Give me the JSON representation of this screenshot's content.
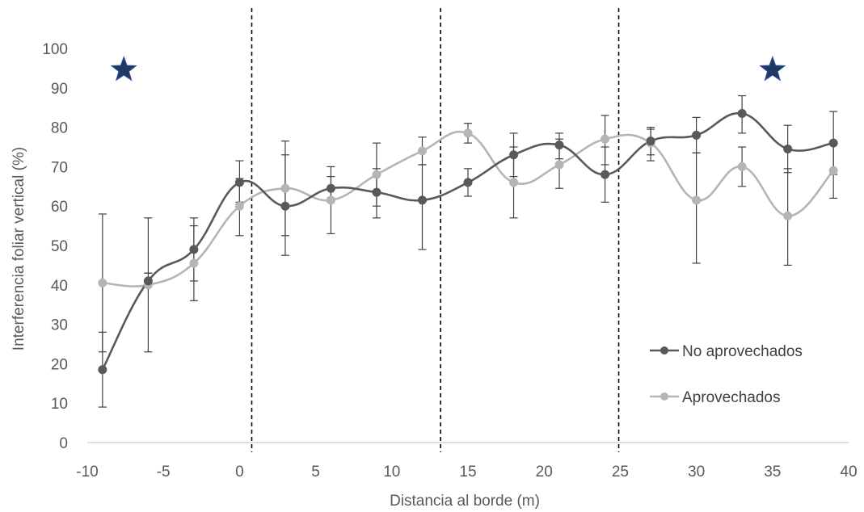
{
  "chart_data": {
    "type": "line",
    "title": "",
    "xlabel": "Distancia al borde (m)",
    "ylabel": "Interferencia foliar vertical (%)",
    "xlim": [
      -10,
      40
    ],
    "ylim": [
      0,
      100
    ],
    "xticks": [
      -10,
      -5,
      0,
      5,
      10,
      15,
      20,
      25,
      30,
      35,
      40
    ],
    "yticks": [
      0,
      10,
      20,
      30,
      40,
      50,
      60,
      70,
      80,
      90,
      100
    ],
    "grid": false,
    "legend_position": "right",
    "smooth": true,
    "vertical_dashed_lines_x": [
      0.8,
      13.2,
      24.9
    ],
    "stars": [
      {
        "x": -7.6,
        "y": 95,
        "color": "#1f3864"
      },
      {
        "x": 35.0,
        "y": 95,
        "color": "#1f3864"
      }
    ],
    "series": [
      {
        "name": "No aprovechados",
        "color": "#595959",
        "points": [
          {
            "x": -9,
            "y": 18.5,
            "err_low": 9,
            "err_high": 28
          },
          {
            "x": -6,
            "y": 41,
            "err_low": 43,
            "err_high": 57
          },
          {
            "x": -3,
            "y": 49,
            "err_low": 41,
            "err_high": 57
          },
          {
            "x": 0,
            "y": 66,
            "err_low": 61,
            "err_high": 71.5
          },
          {
            "x": 3,
            "y": 60,
            "err_low": 47.5,
            "err_high": 73
          },
          {
            "x": 6,
            "y": 64.5,
            "err_low": 62,
            "err_high": 70
          },
          {
            "x": 9,
            "y": 63.5,
            "err_low": 57,
            "err_high": 69.5
          },
          {
            "x": 12,
            "y": 61.5,
            "err_low": 49,
            "err_high": 70.5
          },
          {
            "x": 15,
            "y": 66,
            "err_low": 62.5,
            "err_high": 69.5
          },
          {
            "x": 18,
            "y": 73,
            "err_low": 67.5,
            "err_high": 78.5
          },
          {
            "x": 21,
            "y": 75.5,
            "err_low": 72,
            "err_high": 78.5
          },
          {
            "x": 24,
            "y": 68,
            "err_low": 61,
            "err_high": 75
          },
          {
            "x": 27,
            "y": 76.5,
            "err_low": 73,
            "err_high": 80
          },
          {
            "x": 30,
            "y": 78,
            "err_low": 73.5,
            "err_high": 82.5
          },
          {
            "x": 33,
            "y": 83.5,
            "err_low": 78.5,
            "err_high": 88
          },
          {
            "x": 36,
            "y": 74.5,
            "err_low": 68.5,
            "err_high": 80.5
          },
          {
            "x": 39,
            "y": 76,
            "err_low": 68,
            "err_high": 84
          }
        ]
      },
      {
        "name": "Aprovechados",
        "color": "#b5b5b5",
        "points": [
          {
            "x": -9,
            "y": 40.5,
            "err_low": 23,
            "err_high": 58
          },
          {
            "x": -6,
            "y": 40,
            "err_low": 23,
            "err_high": 43
          },
          {
            "x": -3,
            "y": 45.5,
            "err_low": 36,
            "err_high": 55
          },
          {
            "x": 0,
            "y": 60,
            "err_low": 52.5,
            "err_high": 67
          },
          {
            "x": 3,
            "y": 64.5,
            "err_low": 52.5,
            "err_high": 76.5
          },
          {
            "x": 6,
            "y": 61.5,
            "err_low": 53,
            "err_high": 67.5
          },
          {
            "x": 9,
            "y": 68,
            "err_low": 60,
            "err_high": 76
          },
          {
            "x": 12,
            "y": 74,
            "err_low": 70.5,
            "err_high": 77.5
          },
          {
            "x": 15,
            "y": 78.5,
            "err_low": 76,
            "err_high": 81
          },
          {
            "x": 18,
            "y": 66,
            "err_low": 57,
            "err_high": 75
          },
          {
            "x": 21,
            "y": 70.5,
            "err_low": 64.5,
            "err_high": 77
          },
          {
            "x": 24,
            "y": 77,
            "err_low": 70.5,
            "err_high": 83
          },
          {
            "x": 27,
            "y": 76,
            "err_low": 71.5,
            "err_high": 79.5
          },
          {
            "x": 30,
            "y": 61.5,
            "err_low": 45.5,
            "err_high": 73.5
          },
          {
            "x": 33,
            "y": 70,
            "err_low": 65,
            "err_high": 75
          },
          {
            "x": 36,
            "y": 57.5,
            "err_low": 45,
            "err_high": 69.5
          },
          {
            "x": 39,
            "y": 69,
            "err_low": 62,
            "err_high": 76
          }
        ]
      }
    ]
  }
}
